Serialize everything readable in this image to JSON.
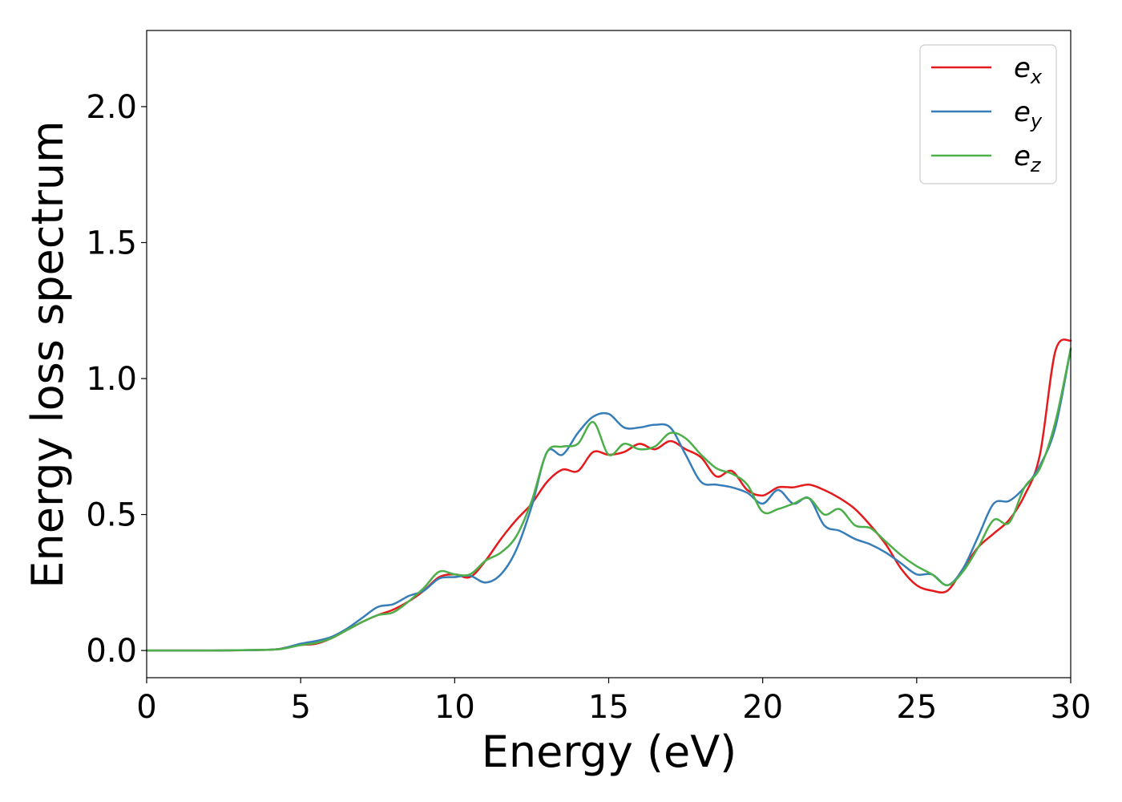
{
  "chart_data": {
    "type": "line",
    "xlabel": "Energy (eV)",
    "ylabel": "Energy loss spectrum",
    "xlim": [
      0,
      30
    ],
    "ylim": [
      -0.1,
      2.28
    ],
    "xticks": [
      0,
      5,
      10,
      15,
      20,
      25,
      30
    ],
    "xtick_labels": [
      "0",
      "5",
      "10",
      "15",
      "20",
      "25",
      "30"
    ],
    "yticks": [
      0.0,
      0.5,
      1.0,
      1.5,
      2.0
    ],
    "ytick_labels": [
      "0.0",
      "0.5",
      "1.0",
      "1.5",
      "2.0"
    ],
    "grid": false,
    "legend_position": "top-right",
    "series": [
      {
        "name": "e",
        "subscript": "x",
        "color": "#e41a1c",
        "x": [
          0,
          2,
          4,
          4.5,
          5,
          5.5,
          6,
          6.5,
          7,
          7.5,
          8,
          8.5,
          9,
          9.5,
          10,
          10.5,
          11,
          11.5,
          12,
          12.5,
          13,
          13.5,
          14,
          14.5,
          15,
          15.5,
          16,
          16.5,
          17,
          17.5,
          18,
          18.5,
          19,
          19.5,
          20,
          20.5,
          21,
          21.5,
          22,
          22.5,
          23,
          23.5,
          24,
          24.5,
          25,
          25.5,
          26,
          26.5,
          27,
          27.5,
          28,
          28.5,
          29,
          29.5,
          30
        ],
        "y": [
          0.0,
          0.0,
          0.003,
          0.01,
          0.02,
          0.025,
          0.045,
          0.075,
          0.105,
          0.13,
          0.15,
          0.18,
          0.22,
          0.27,
          0.28,
          0.27,
          0.33,
          0.41,
          0.48,
          0.54,
          0.62,
          0.665,
          0.66,
          0.73,
          0.72,
          0.73,
          0.76,
          0.74,
          0.77,
          0.74,
          0.71,
          0.64,
          0.66,
          0.59,
          0.57,
          0.6,
          0.6,
          0.61,
          0.59,
          0.56,
          0.52,
          0.46,
          0.39,
          0.3,
          0.24,
          0.22,
          0.22,
          0.3,
          0.38,
          0.43,
          0.48,
          0.57,
          0.72,
          1.1,
          1.14
        ]
      },
      {
        "name": "e",
        "subscript": "y",
        "color": "#377eb8",
        "x": [
          0,
          2,
          4,
          4.5,
          5,
          5.5,
          6,
          6.5,
          7,
          7.5,
          8,
          8.5,
          9,
          9.5,
          10,
          10.5,
          11,
          11.5,
          12,
          12.5,
          13,
          13.5,
          14,
          14.5,
          15,
          15.5,
          16,
          16.5,
          17,
          17.5,
          18,
          18.5,
          19,
          19.5,
          20,
          20.5,
          21,
          21.5,
          22,
          22.5,
          23,
          23.5,
          24,
          24.5,
          25,
          25.5,
          26,
          26.5,
          27,
          27.5,
          28,
          28.5,
          29,
          29.5,
          30
        ],
        "y": [
          0.0,
          0.0,
          0.003,
          0.01,
          0.025,
          0.035,
          0.05,
          0.08,
          0.12,
          0.16,
          0.17,
          0.2,
          0.22,
          0.265,
          0.27,
          0.275,
          0.25,
          0.28,
          0.37,
          0.53,
          0.73,
          0.72,
          0.8,
          0.86,
          0.87,
          0.82,
          0.82,
          0.83,
          0.82,
          0.72,
          0.62,
          0.61,
          0.6,
          0.58,
          0.54,
          0.59,
          0.54,
          0.56,
          0.46,
          0.44,
          0.41,
          0.39,
          0.36,
          0.32,
          0.28,
          0.28,
          0.24,
          0.3,
          0.42,
          0.54,
          0.55,
          0.6,
          0.68,
          0.82,
          1.11
        ]
      },
      {
        "name": "e",
        "subscript": "z",
        "color": "#4daf4a",
        "x": [
          0,
          2,
          4,
          4.5,
          5,
          5.5,
          6,
          6.5,
          7,
          7.5,
          8,
          8.5,
          9,
          9.5,
          10,
          10.5,
          11,
          11.5,
          12,
          12.5,
          13,
          13.5,
          14,
          14.5,
          15,
          15.5,
          16,
          16.5,
          17,
          17.5,
          18,
          18.5,
          19,
          19.5,
          20,
          20.5,
          21,
          21.5,
          22,
          22.5,
          23,
          23.5,
          24,
          24.5,
          25,
          25.5,
          26,
          26.5,
          27,
          27.5,
          28,
          28.5,
          29,
          29.5,
          30
        ],
        "y": [
          0.0,
          0.0,
          0.003,
          0.008,
          0.02,
          0.028,
          0.045,
          0.075,
          0.105,
          0.13,
          0.14,
          0.18,
          0.23,
          0.29,
          0.28,
          0.28,
          0.33,
          0.36,
          0.42,
          0.55,
          0.73,
          0.75,
          0.76,
          0.84,
          0.72,
          0.76,
          0.74,
          0.75,
          0.8,
          0.78,
          0.72,
          0.67,
          0.65,
          0.61,
          0.51,
          0.52,
          0.54,
          0.56,
          0.5,
          0.52,
          0.46,
          0.45,
          0.4,
          0.35,
          0.31,
          0.28,
          0.24,
          0.29,
          0.38,
          0.48,
          0.47,
          0.6,
          0.67,
          0.84,
          1.11
        ]
      }
    ]
  }
}
